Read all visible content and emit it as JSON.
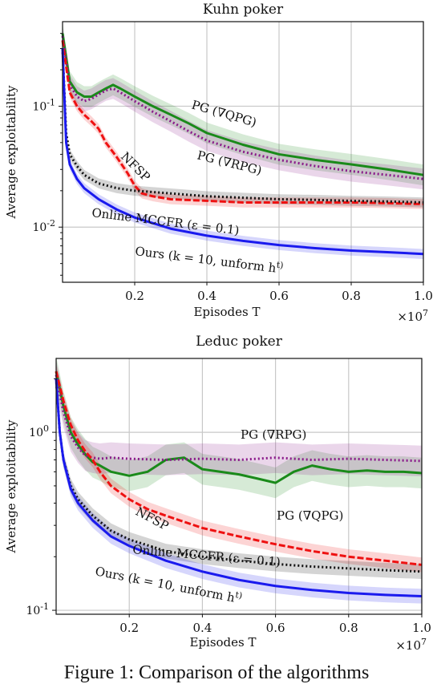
{
  "caption": "Figure 1: Comparison of the algorithms",
  "chart_data": [
    {
      "type": "line",
      "title": "Kuhn poker",
      "xlabel": "Episodes T",
      "ylabel": "Average exploitability",
      "x_multiplier": "×10^7",
      "xlim": [
        0,
        1.0
      ],
      "ylim": [
        0.0035,
        0.5
      ],
      "yscale": "log",
      "grid": true,
      "xticks": [
        0.2,
        0.4,
        0.6,
        0.8,
        1.0
      ],
      "yticks": [
        {
          "value": 0.1,
          "label": "10^-1"
        },
        {
          "value": 0.01,
          "label": "10^-2"
        }
      ],
      "series": [
        {
          "name": "PG (∇QPG)",
          "color": "#1a8a1a",
          "style": "solid",
          "x": [
            0,
            0.02,
            0.04,
            0.06,
            0.08,
            0.1,
            0.12,
            0.14,
            0.16,
            0.2,
            0.25,
            0.3,
            0.35,
            0.4,
            0.5,
            0.6,
            0.7,
            0.8,
            0.9,
            1.0
          ],
          "y": [
            0.4,
            0.16,
            0.13,
            0.12,
            0.12,
            0.13,
            0.14,
            0.15,
            0.14,
            0.12,
            0.1,
            0.085,
            0.072,
            0.06,
            0.048,
            0.04,
            0.036,
            0.033,
            0.03,
            0.027
          ]
        },
        {
          "name": "PG (∇RPG)",
          "color": "#8a1a8a",
          "style": "dotted",
          "x": [
            0,
            0.02,
            0.04,
            0.06,
            0.08,
            0.1,
            0.12,
            0.14,
            0.16,
            0.2,
            0.25,
            0.3,
            0.35,
            0.4,
            0.5,
            0.6,
            0.7,
            0.8,
            0.9,
            1.0
          ],
          "y": [
            0.38,
            0.15,
            0.12,
            0.11,
            0.115,
            0.125,
            0.135,
            0.14,
            0.13,
            0.11,
            0.09,
            0.075,
            0.062,
            0.052,
            0.042,
            0.036,
            0.032,
            0.029,
            0.027,
            0.025
          ]
        },
        {
          "name": "NFSP",
          "color": "#ee1111",
          "style": "dashed",
          "x": [
            0,
            0.02,
            0.04,
            0.06,
            0.08,
            0.1,
            0.12,
            0.15,
            0.18,
            0.2,
            0.22,
            0.25,
            0.3,
            0.4,
            0.5,
            0.6,
            0.7,
            0.8,
            0.9,
            1.0
          ],
          "y": [
            0.35,
            0.13,
            0.1,
            0.085,
            0.075,
            0.065,
            0.05,
            0.038,
            0.028,
            0.022,
            0.019,
            0.018,
            0.017,
            0.0165,
            0.016,
            0.016,
            0.016,
            0.016,
            0.0158,
            0.0155
          ]
        },
        {
          "name": "Online MCCFR (ε = 0.1)",
          "color": "#111111",
          "style": "dotted",
          "x": [
            0,
            0.01,
            0.02,
            0.04,
            0.06,
            0.1,
            0.15,
            0.2,
            0.3,
            0.4,
            0.5,
            0.6,
            0.7,
            0.8,
            0.9,
            1.0
          ],
          "y": [
            0.3,
            0.06,
            0.04,
            0.032,
            0.027,
            0.023,
            0.021,
            0.02,
            0.019,
            0.018,
            0.0175,
            0.017,
            0.0168,
            0.0165,
            0.0163,
            0.016
          ]
        },
        {
          "name": "Ours (k = 10, unform h^t)",
          "color": "#1a1aee",
          "style": "solid",
          "x": [
            0,
            0.01,
            0.02,
            0.04,
            0.06,
            0.1,
            0.15,
            0.2,
            0.3,
            0.4,
            0.5,
            0.6,
            0.7,
            0.8,
            0.9,
            1.0
          ],
          "y": [
            0.3,
            0.05,
            0.033,
            0.025,
            0.021,
            0.017,
            0.014,
            0.012,
            0.0097,
            0.0085,
            0.0077,
            0.0071,
            0.0067,
            0.0064,
            0.0062,
            0.006
          ]
        }
      ],
      "annotations": [
        "PG (∇QPG)",
        "PG (∇RPG)",
        "NFSP",
        "Online MCCFR (ε = 0.1)",
        "Ours (k = 10, unform h^t)"
      ]
    },
    {
      "type": "line",
      "title": "Leduc poker",
      "xlabel": "Episodes T",
      "ylabel": "Average exploitability",
      "x_multiplier": "×10^7",
      "xlim": [
        0,
        1.0
      ],
      "ylim": [
        0.095,
        2.6
      ],
      "yscale": "log",
      "grid": true,
      "xticks": [
        0.2,
        0.4,
        0.6,
        0.8,
        1.0
      ],
      "yticks": [
        {
          "value": 1.0,
          "label": "10^0"
        },
        {
          "value": 0.1,
          "label": "10^-1"
        }
      ],
      "series": [
        {
          "name": "PG (∇QPG)",
          "color": "#1a8a1a",
          "style": "solid",
          "x": [
            0,
            0.02,
            0.04,
            0.06,
            0.08,
            0.1,
            0.12,
            0.15,
            0.2,
            0.25,
            0.3,
            0.35,
            0.4,
            0.45,
            0.5,
            0.55,
            0.6,
            0.65,
            0.7,
            0.75,
            0.8,
            0.85,
            0.9,
            0.95,
            1.0
          ],
          "y": [
            2.2,
            1.4,
            1.0,
            0.85,
            0.75,
            0.68,
            0.65,
            0.6,
            0.57,
            0.6,
            0.7,
            0.72,
            0.62,
            0.6,
            0.58,
            0.55,
            0.52,
            0.6,
            0.65,
            0.62,
            0.6,
            0.61,
            0.6,
            0.6,
            0.59
          ]
        },
        {
          "name": "PG (∇RPG)",
          "color": "#8a1a8a",
          "style": "dotted",
          "x": [
            0,
            0.02,
            0.04,
            0.06,
            0.08,
            0.1,
            0.12,
            0.15,
            0.2,
            0.3,
            0.4,
            0.5,
            0.6,
            0.7,
            0.8,
            0.9,
            1.0
          ],
          "y": [
            2.1,
            1.3,
            0.95,
            0.82,
            0.74,
            0.72,
            0.71,
            0.72,
            0.71,
            0.7,
            0.71,
            0.7,
            0.72,
            0.7,
            0.71,
            0.7,
            0.69
          ]
        },
        {
          "name": "NFSP",
          "color": "#ee1111",
          "style": "dashed",
          "x": [
            0,
            0.02,
            0.04,
            0.06,
            0.08,
            0.1,
            0.12,
            0.15,
            0.2,
            0.25,
            0.3,
            0.4,
            0.5,
            0.6,
            0.7,
            0.8,
            0.9,
            1.0
          ],
          "y": [
            2.2,
            1.5,
            1.1,
            0.9,
            0.78,
            0.7,
            0.6,
            0.5,
            0.42,
            0.37,
            0.34,
            0.29,
            0.26,
            0.235,
            0.215,
            0.2,
            0.19,
            0.18
          ]
        },
        {
          "name": "Online MCCFR (ε = 0.1)",
          "color": "#111111",
          "style": "dotted",
          "x": [
            0,
            0.01,
            0.02,
            0.04,
            0.06,
            0.1,
            0.15,
            0.2,
            0.3,
            0.4,
            0.5,
            0.6,
            0.7,
            0.8,
            0.9,
            1.0
          ],
          "y": [
            2.0,
            1.0,
            0.7,
            0.5,
            0.42,
            0.34,
            0.28,
            0.25,
            0.215,
            0.2,
            0.19,
            0.182,
            0.176,
            0.172,
            0.168,
            0.165
          ]
        },
        {
          "name": "Ours (k = 10, unform h^t)",
          "color": "#1a1aee",
          "style": "solid",
          "x": [
            0,
            0.01,
            0.02,
            0.04,
            0.06,
            0.1,
            0.15,
            0.2,
            0.3,
            0.4,
            0.5,
            0.6,
            0.7,
            0.8,
            0.9,
            1.0
          ],
          "y": [
            2.0,
            1.0,
            0.7,
            0.48,
            0.4,
            0.32,
            0.26,
            0.23,
            0.19,
            0.165,
            0.148,
            0.137,
            0.13,
            0.125,
            0.122,
            0.12
          ]
        }
      ],
      "annotations": [
        "PG (∇RPG)",
        "PG (∇QPG)",
        "NFSP",
        "Online MCCFR (ε = 0.1)",
        "Ours (k = 10, unform h^t)"
      ]
    }
  ]
}
